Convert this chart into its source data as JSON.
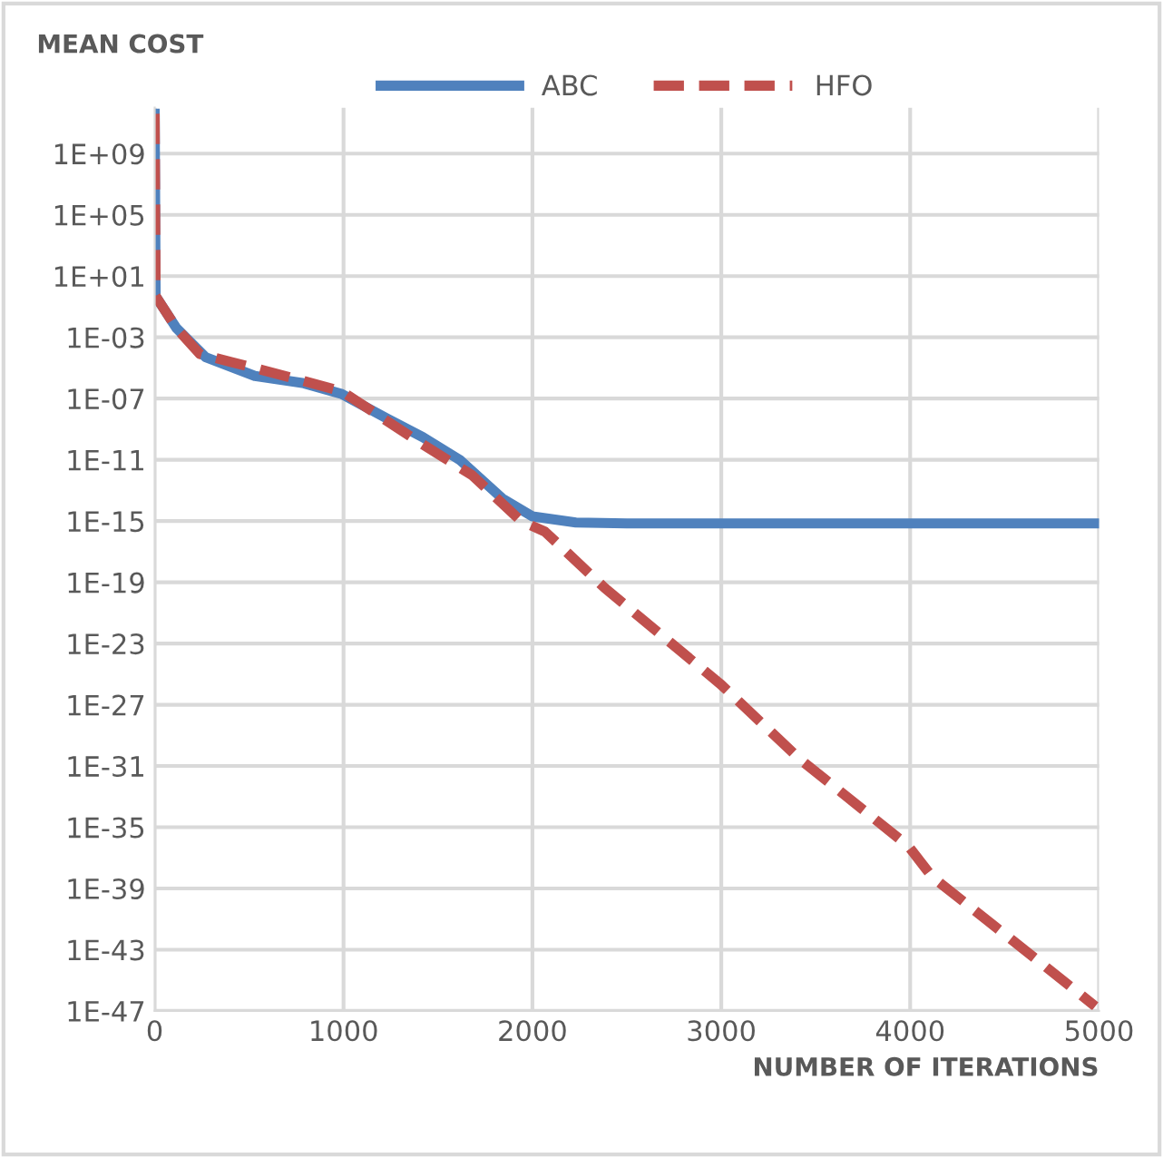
{
  "chart_data": {
    "type": "line",
    "ylabel": "MEAN COST",
    "xlabel": "NUMBER OF ITERATIONS",
    "log": "y",
    "grid": true,
    "legend": "top",
    "xlim": [
      0,
      5000
    ],
    "xticks": [
      0,
      1000,
      2000,
      3000,
      4000,
      5000
    ],
    "ylim": [
      1e-47,
      1000000000000.0
    ],
    "yticks": [
      {
        "value": 1000000000.0,
        "label": "1E+09"
      },
      {
        "value": 100000.0,
        "label": "1E+05"
      },
      {
        "value": 10.0,
        "label": "1E+01"
      },
      {
        "value": 0.001,
        "label": "1E-03"
      },
      {
        "value": 1e-07,
        "label": "1E-07"
      },
      {
        "value": 1e-11,
        "label": "1E-11"
      },
      {
        "value": 1e-15,
        "label": "1E-15"
      },
      {
        "value": 1e-19,
        "label": "1E-19"
      },
      {
        "value": 1e-23,
        "label": "1E-23"
      },
      {
        "value": 1e-27,
        "label": "1E-27"
      },
      {
        "value": 1e-31,
        "label": "1E-31"
      },
      {
        "value": 1e-35,
        "label": "1E-35"
      },
      {
        "value": 1e-39,
        "label": "1E-39"
      },
      {
        "value": 1e-43,
        "label": "1E-43"
      },
      {
        "value": 1e-47,
        "label": "1E-47"
      }
    ],
    "series": [
      {
        "name": "ABC",
        "color": "#4f81bd",
        "line_style": "solid",
        "x": [
          0,
          5,
          115,
          270,
          530,
          790,
          990,
          1230,
          1420,
          1615,
          1840,
          2000,
          2230,
          2500,
          5000
        ],
        "values": [
          400000000000.0,
          0.5,
          0.004,
          5e-05,
          3e-06,
          1e-06,
          2e-07,
          5e-09,
          3e-10,
          1e-11,
          3e-14,
          2e-15,
          8e-16,
          7e-16,
          7e-16
        ]
      },
      {
        "name": "HFO",
        "color": "#c0504d",
        "line_style": "dashed",
        "x": [
          0,
          5,
          115,
          240,
          530,
          990,
          1420,
          1680,
          1940,
          2067,
          2385,
          3000,
          3413,
          3990,
          4115,
          4635,
          4980
        ],
        "values": [
          400000000000.0,
          0.5,
          0.004,
          8e-05,
          1e-05,
          3e-07,
          1e-10,
          1e-12,
          1e-15,
          2e-16,
          4e-20,
          2e-26,
          3e-31,
          6e-37,
          6e-39,
          5e-44,
          2e-47
        ]
      }
    ]
  }
}
